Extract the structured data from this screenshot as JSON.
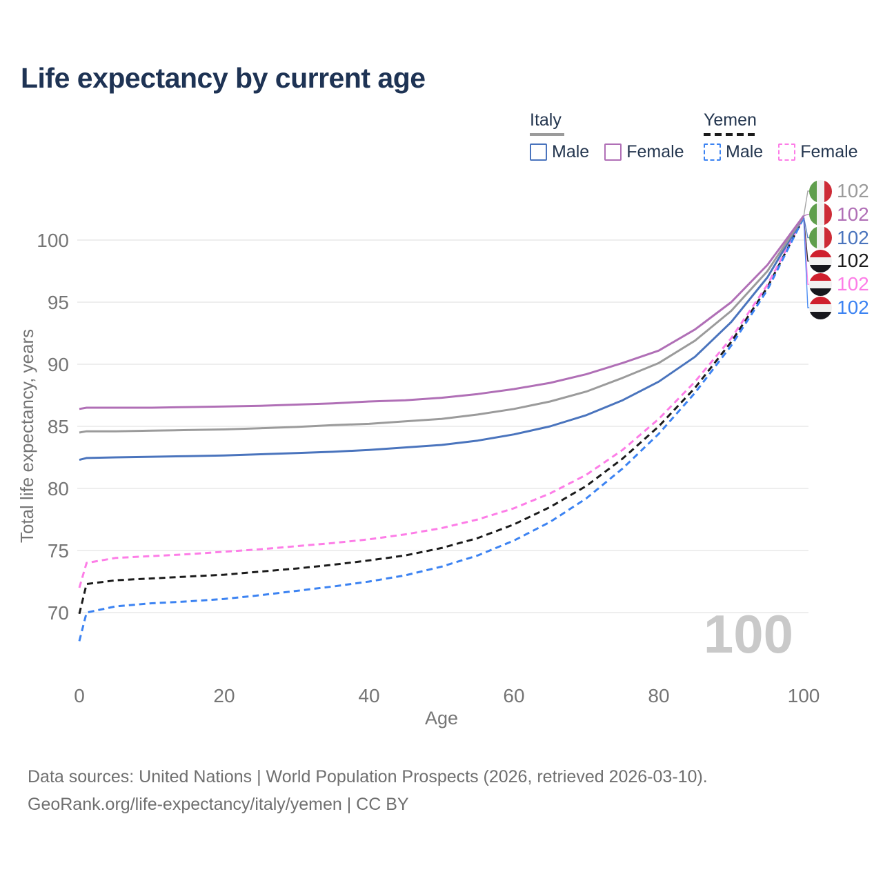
{
  "title": "Life expectancy by current age",
  "legend": {
    "italy": {
      "name": "Italy",
      "male": "Male",
      "female": "Female"
    },
    "yemen": {
      "name": "Yemen",
      "male": "Male",
      "female": "Female"
    }
  },
  "footer": {
    "line1": "Data sources: United Nations | World Population Prospects (2026, retrieved 2026-03-10).",
    "line2": "GeoRank.org/life-expectancy/italy/yemen | CC BY"
  },
  "colors": {
    "title_text": "#1e3354",
    "legend_text": "#24364f",
    "axis_text": "#757575",
    "grid": "#e9e9e9",
    "watermark": "#c9c9c9",
    "footer_text": "#6f6f6f",
    "italy_total": "#9b9b9b",
    "italy_female": "#b06fb6",
    "italy_male": "#4a74bd",
    "yemen_total": "#1b1b1b",
    "yemen_female": "#fd7de7",
    "yemen_male": "#3c83f2"
  },
  "chart_data": {
    "type": "line",
    "title": "Life expectancy by current age",
    "xlabel": "Age",
    "ylabel": "Total life expectancy, years",
    "xticks": [
      0,
      20,
      40,
      60,
      80,
      100
    ],
    "yticks": [
      70,
      75,
      80,
      85,
      90,
      95,
      100
    ],
    "xlim": [
      0,
      100
    ],
    "ylim": [
      66.5,
      103
    ],
    "grid": "horizontal-only",
    "legend_position": "top-right",
    "watermark_age": "100",
    "ages": [
      0,
      1,
      5,
      10,
      15,
      20,
      25,
      30,
      35,
      40,
      45,
      50,
      55,
      60,
      65,
      70,
      75,
      80,
      85,
      90,
      95,
      100
    ],
    "series": [
      {
        "id": "italy-total",
        "name": "Italy Total",
        "country": "italy",
        "style": "solid",
        "color": "#9b9b9b",
        "end_label": "102",
        "values": [
          84.5,
          84.6,
          84.6,
          84.65,
          84.7,
          84.75,
          84.85,
          84.95,
          85.1,
          85.2,
          85.4,
          85.6,
          85.95,
          86.4,
          87.0,
          87.8,
          88.9,
          90.1,
          91.9,
          94.3,
          97.5,
          101.9
        ]
      },
      {
        "id": "italy-female",
        "name": "Italy Female",
        "country": "italy",
        "style": "solid",
        "color": "#b06fb6",
        "end_label": "102",
        "values": [
          86.4,
          86.5,
          86.5,
          86.5,
          86.55,
          86.6,
          86.65,
          86.75,
          86.85,
          87.0,
          87.1,
          87.3,
          87.6,
          88.0,
          88.5,
          89.2,
          90.1,
          91.1,
          92.8,
          95.0,
          98.0,
          101.95
        ]
      },
      {
        "id": "italy-male",
        "name": "Italy Male",
        "country": "italy",
        "style": "solid",
        "color": "#4a74bd",
        "end_label": "102",
        "values": [
          82.3,
          82.45,
          82.5,
          82.55,
          82.6,
          82.65,
          82.75,
          82.85,
          82.95,
          83.1,
          83.3,
          83.5,
          83.85,
          84.35,
          85.0,
          85.9,
          87.1,
          88.6,
          90.6,
          93.4,
          97.0,
          101.9
        ]
      },
      {
        "id": "yemen-total",
        "name": "Yemen Total",
        "country": "yemen",
        "style": "dashed",
        "color": "#1b1b1b",
        "end_label": "102",
        "values": [
          69.9,
          72.3,
          72.6,
          72.75,
          72.9,
          73.05,
          73.3,
          73.55,
          73.85,
          74.2,
          74.6,
          75.2,
          76.0,
          77.1,
          78.5,
          80.2,
          82.4,
          85.0,
          88.1,
          91.8,
          96.2,
          101.8
        ]
      },
      {
        "id": "yemen-female",
        "name": "Yemen Female",
        "country": "yemen",
        "style": "dashed",
        "color": "#fd7de7",
        "end_label": "102",
        "values": [
          72.0,
          74.0,
          74.4,
          74.55,
          74.7,
          74.9,
          75.1,
          75.35,
          75.6,
          75.9,
          76.3,
          76.8,
          77.5,
          78.4,
          79.6,
          81.1,
          83.1,
          85.6,
          88.6,
          92.1,
          96.4,
          101.85
        ]
      },
      {
        "id": "yemen-male",
        "name": "Yemen Male",
        "country": "yemen",
        "style": "dashed",
        "color": "#3c83f2",
        "end_label": "102",
        "values": [
          67.7,
          70.0,
          70.5,
          70.75,
          70.9,
          71.1,
          71.4,
          71.75,
          72.1,
          72.5,
          73.0,
          73.7,
          74.6,
          75.8,
          77.3,
          79.2,
          81.6,
          84.4,
          87.7,
          91.5,
          96.0,
          101.8
        ]
      }
    ]
  }
}
